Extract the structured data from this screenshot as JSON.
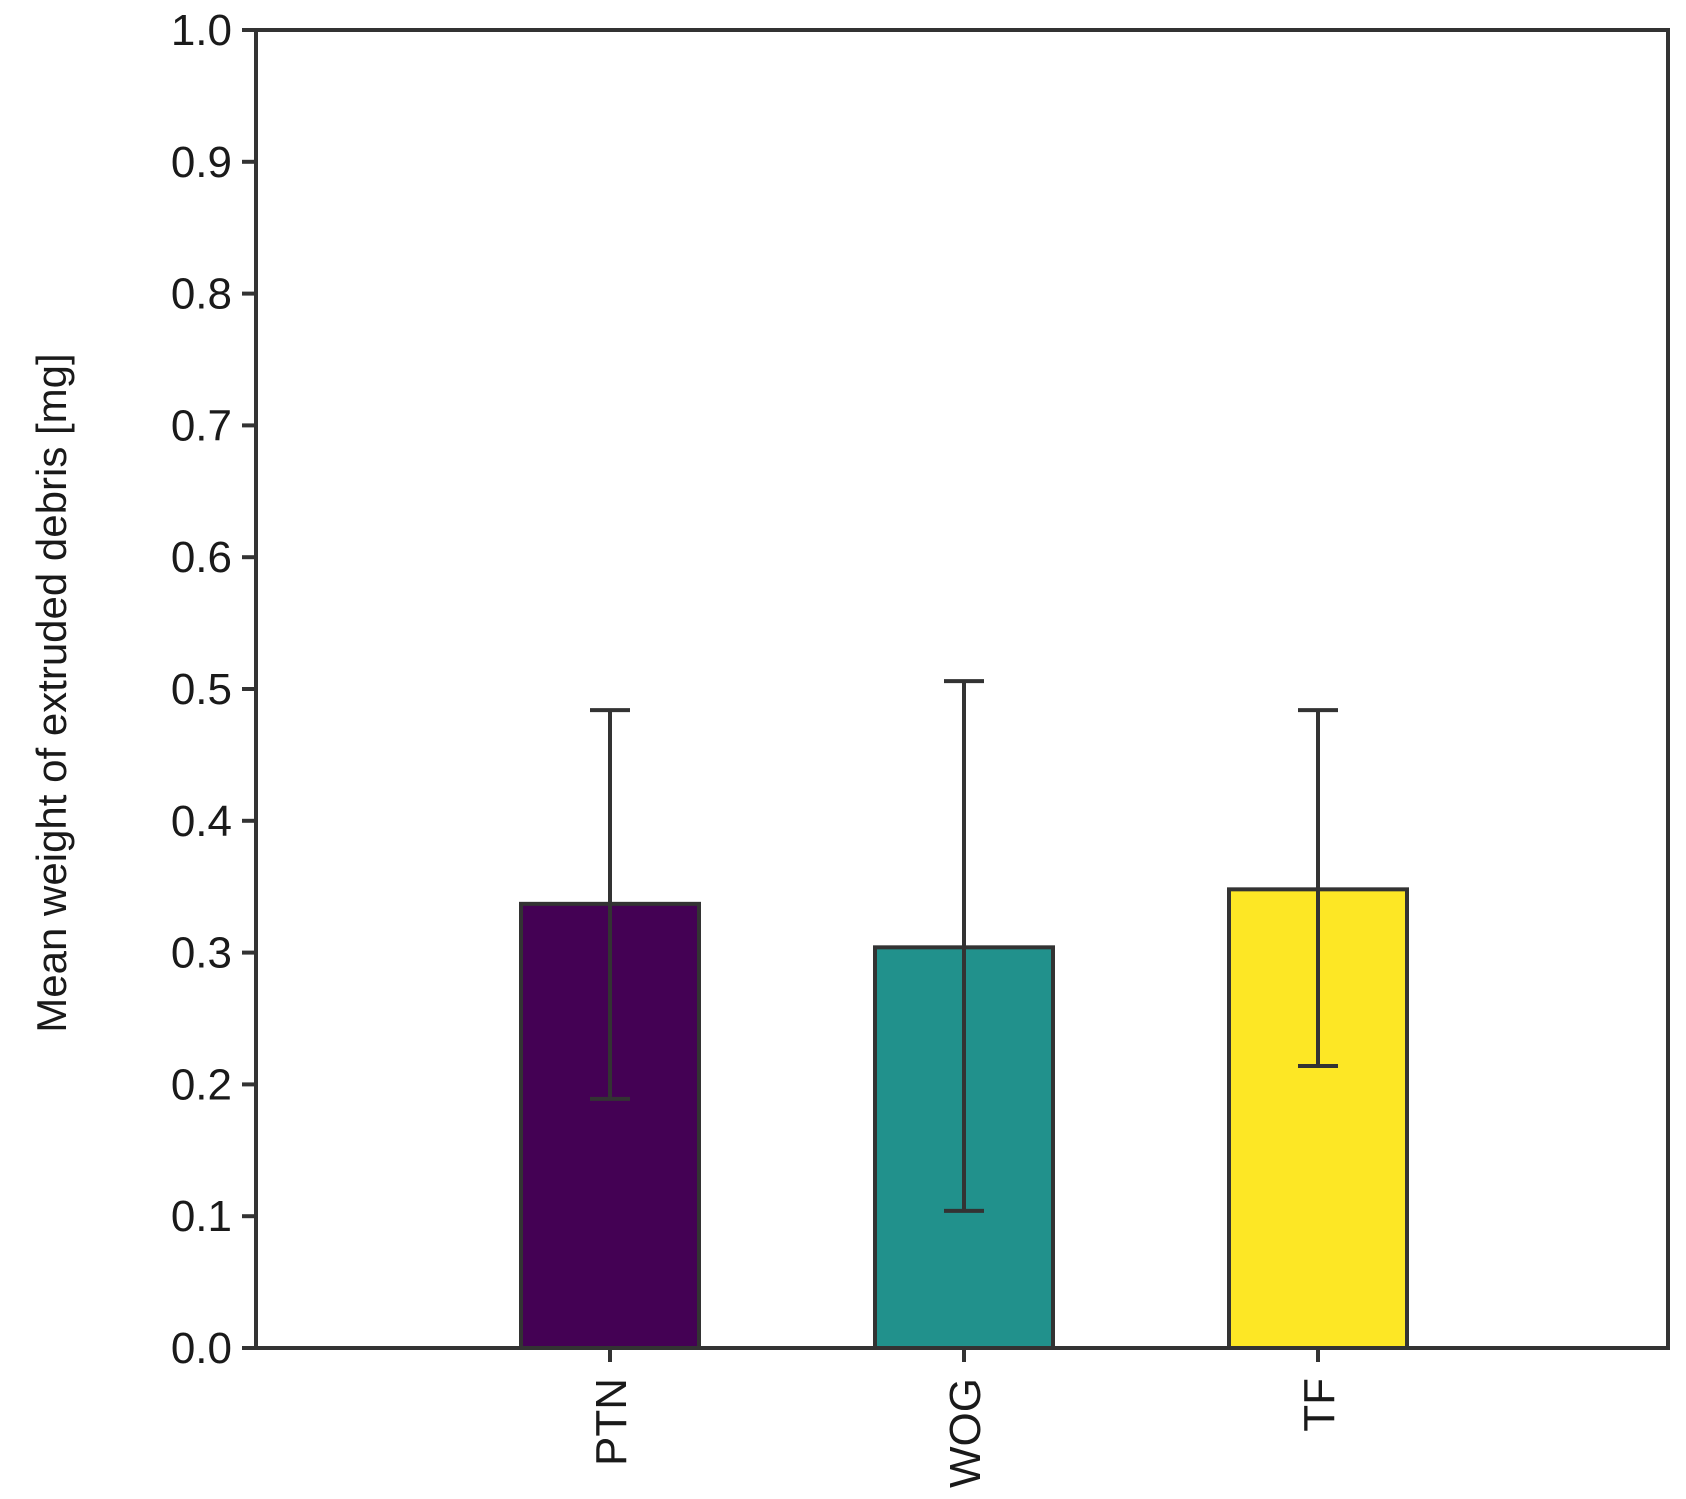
{
  "chart_data": {
    "type": "bar",
    "title": "",
    "xlabel": "",
    "ylabel": "Mean weight of extruded debris [mg]",
    "ylim": [
      0.0,
      1.0
    ],
    "yticks": [
      "0.0",
      "0.1",
      "0.2",
      "0.3",
      "0.4",
      "0.5",
      "0.6",
      "0.7",
      "0.8",
      "0.9",
      "1.0"
    ],
    "categories": [
      "PTN",
      "WOG",
      "TF"
    ],
    "values": [
      0.337,
      0.304,
      0.348
    ],
    "error_low": [
      0.189,
      0.104,
      0.214
    ],
    "error_high": [
      0.484,
      0.506,
      0.484
    ],
    "colors": [
      "#440154",
      "#21918c",
      "#fde725"
    ],
    "grid": false,
    "legend": "none"
  }
}
